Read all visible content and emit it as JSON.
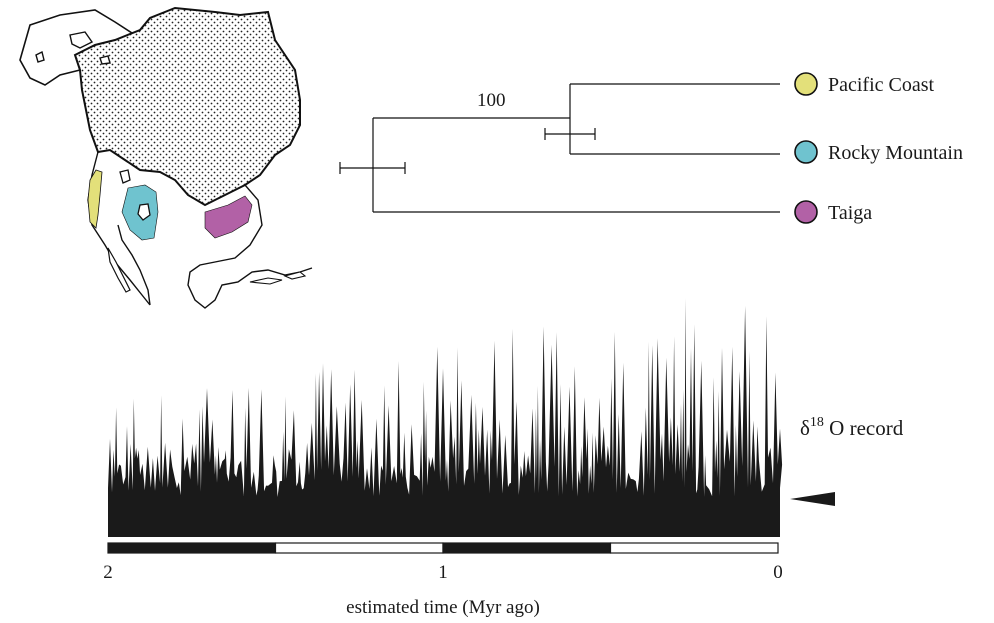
{
  "tree": {
    "bootstrap_label": "100",
    "clades": [
      {
        "name": "Pacific Coast",
        "color": "#e3e07a"
      },
      {
        "name": "Rocky Mountain",
        "color": "#6fc3cf"
      },
      {
        "name": "Taiga",
        "color": "#b261a6"
      }
    ]
  },
  "map": {
    "fill_pattern": "stippled",
    "range_colors": {
      "pacific_coast": "#e3e07a",
      "rocky_mountain": "#6fc3cf",
      "taiga": "#b261a6"
    }
  },
  "record": {
    "label_main": "δ",
    "label_sup": "18",
    "label_rest": " O record",
    "marker": "left-pointing-triangle"
  },
  "time_axis": {
    "ticks": [
      "2",
      "1",
      "0"
    ],
    "label": "estimated time (Myr ago)",
    "range_myr": [
      2,
      0
    ],
    "bar_segments": [
      {
        "from": 2.0,
        "to": 1.5,
        "style": "black"
      },
      {
        "from": 1.5,
        "to": 1.0,
        "style": "white"
      },
      {
        "from": 1.0,
        "to": 0.5,
        "style": "black"
      },
      {
        "from": 0.5,
        "to": 0.0,
        "style": "white"
      }
    ]
  }
}
